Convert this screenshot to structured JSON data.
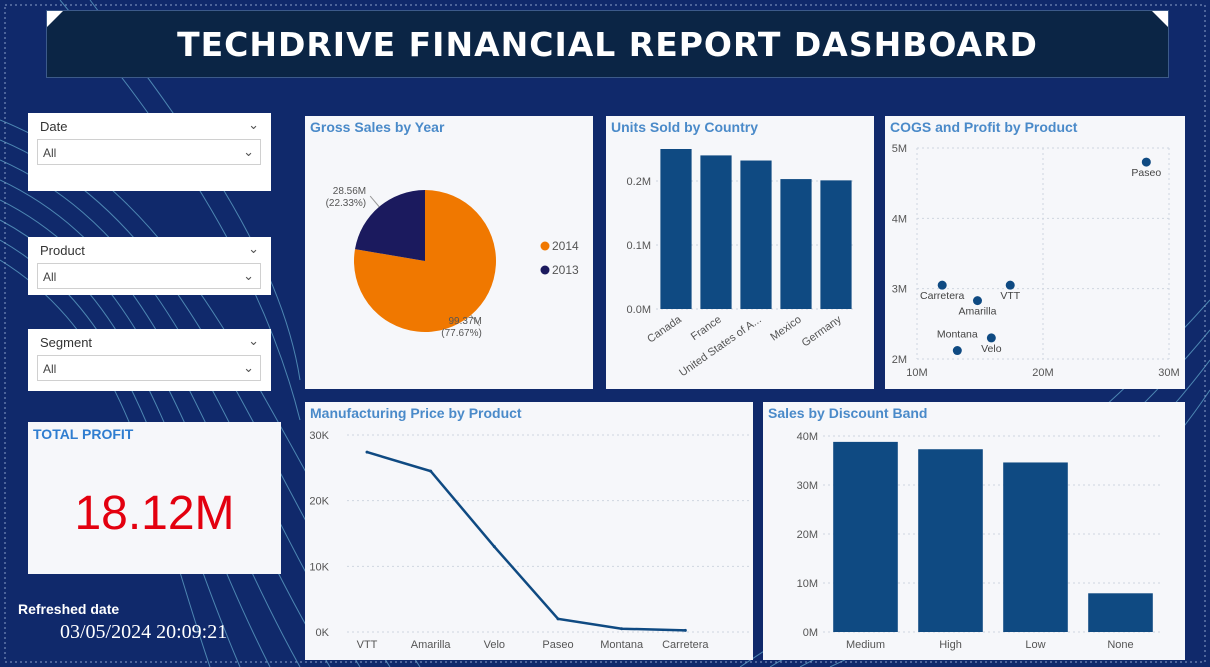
{
  "header": {
    "title": "TECHDRIVE FINANCIAL REPORT DASHBOARD"
  },
  "filters": [
    {
      "label": "Date",
      "value": "All"
    },
    {
      "label": "Product",
      "value": "All"
    },
    {
      "label": "Segment",
      "value": "All"
    }
  ],
  "kpi": {
    "title": "TOTAL PROFIT",
    "value": "18.12M",
    "color": "#e3000f"
  },
  "refresh": {
    "label": "Refreshed date",
    "value": "03/05/2024 20:09:21"
  },
  "colors": {
    "bar": "#0f4a82",
    "orange": "#f07800",
    "navy": "#1b1a5e",
    "title": "#4a8ac9"
  },
  "chart_data": [
    {
      "id": "gross-sales-by-year",
      "type": "pie",
      "title": "Gross Sales by Year",
      "slices": [
        {
          "name": "2014",
          "value": 99.37,
          "label": "99.37M",
          "pct": "(77.67%)",
          "color": "#f07800"
        },
        {
          "name": "2013",
          "value": 28.56,
          "label": "28.56M",
          "pct": "(22.33%)",
          "color": "#1b1a5e"
        }
      ],
      "legend_position": "right"
    },
    {
      "id": "units-sold-by-country",
      "type": "bar",
      "title": "Units Sold by Country",
      "categories": [
        "Canada",
        "France",
        "United States of A...",
        "Mexico",
        "Germany"
      ],
      "values": [
        0.25,
        0.24,
        0.232,
        0.203,
        0.201
      ],
      "ylim": [
        0,
        0.25
      ],
      "yticks": [
        {
          "v": 0,
          "label": "0.0M"
        },
        {
          "v": 0.1,
          "label": "0.1M"
        },
        {
          "v": 0.2,
          "label": "0.2M"
        }
      ]
    },
    {
      "id": "cogs-and-profit-by-product",
      "type": "scatter",
      "title": "COGS and Profit by Product",
      "xlim": [
        10,
        30
      ],
      "ylim": [
        2,
        5
      ],
      "xticks": [
        {
          "v": 10,
          "label": "10M"
        },
        {
          "v": 20,
          "label": "20M"
        },
        {
          "v": 30,
          "label": "30M"
        }
      ],
      "yticks": [
        {
          "v": 2,
          "label": "2M"
        },
        {
          "v": 3,
          "label": "3M"
        },
        {
          "v": 4,
          "label": "4M"
        },
        {
          "v": 5,
          "label": "5M"
        }
      ],
      "points": [
        {
          "name": "Paseo",
          "x": 28.2,
          "y": 4.8,
          "label_pos": "below"
        },
        {
          "name": "Carretera",
          "x": 12.0,
          "y": 3.05,
          "label_pos": "below"
        },
        {
          "name": "VTT",
          "x": 17.4,
          "y": 3.05,
          "label_pos": "below"
        },
        {
          "name": "Amarilla",
          "x": 14.8,
          "y": 2.83,
          "label_pos": "below"
        },
        {
          "name": "Montana",
          "x": 13.2,
          "y": 2.12,
          "label_pos": "above"
        },
        {
          "name": "Velo",
          "x": 15.9,
          "y": 2.3,
          "label_pos": "below"
        }
      ]
    },
    {
      "id": "manufacturing-price-by-product",
      "type": "line",
      "title": "Manufacturing Price by Product",
      "categories": [
        "VTT",
        "Amarilla",
        "Velo",
        "Paseo",
        "Montana",
        "Carretera"
      ],
      "values": [
        27400,
        24500,
        13000,
        2000,
        500,
        250
      ],
      "ylim": [
        0,
        30000
      ],
      "yticks": [
        {
          "v": 0,
          "label": "0K"
        },
        {
          "v": 10000,
          "label": "10K"
        },
        {
          "v": 20000,
          "label": "20K"
        },
        {
          "v": 30000,
          "label": "30K"
        }
      ]
    },
    {
      "id": "sales-by-discount-band",
      "type": "bar",
      "title": "Sales by Discount Band",
      "categories": [
        "Medium",
        "High",
        "Low",
        "None"
      ],
      "values": [
        38.8,
        37.3,
        34.6,
        7.9
      ],
      "ylim": [
        0,
        40
      ],
      "yticks": [
        {
          "v": 0,
          "label": "0M"
        },
        {
          "v": 10,
          "label": "10M"
        },
        {
          "v": 20,
          "label": "20M"
        },
        {
          "v": 30,
          "label": "30M"
        },
        {
          "v": 40,
          "label": "40M"
        }
      ]
    }
  ]
}
